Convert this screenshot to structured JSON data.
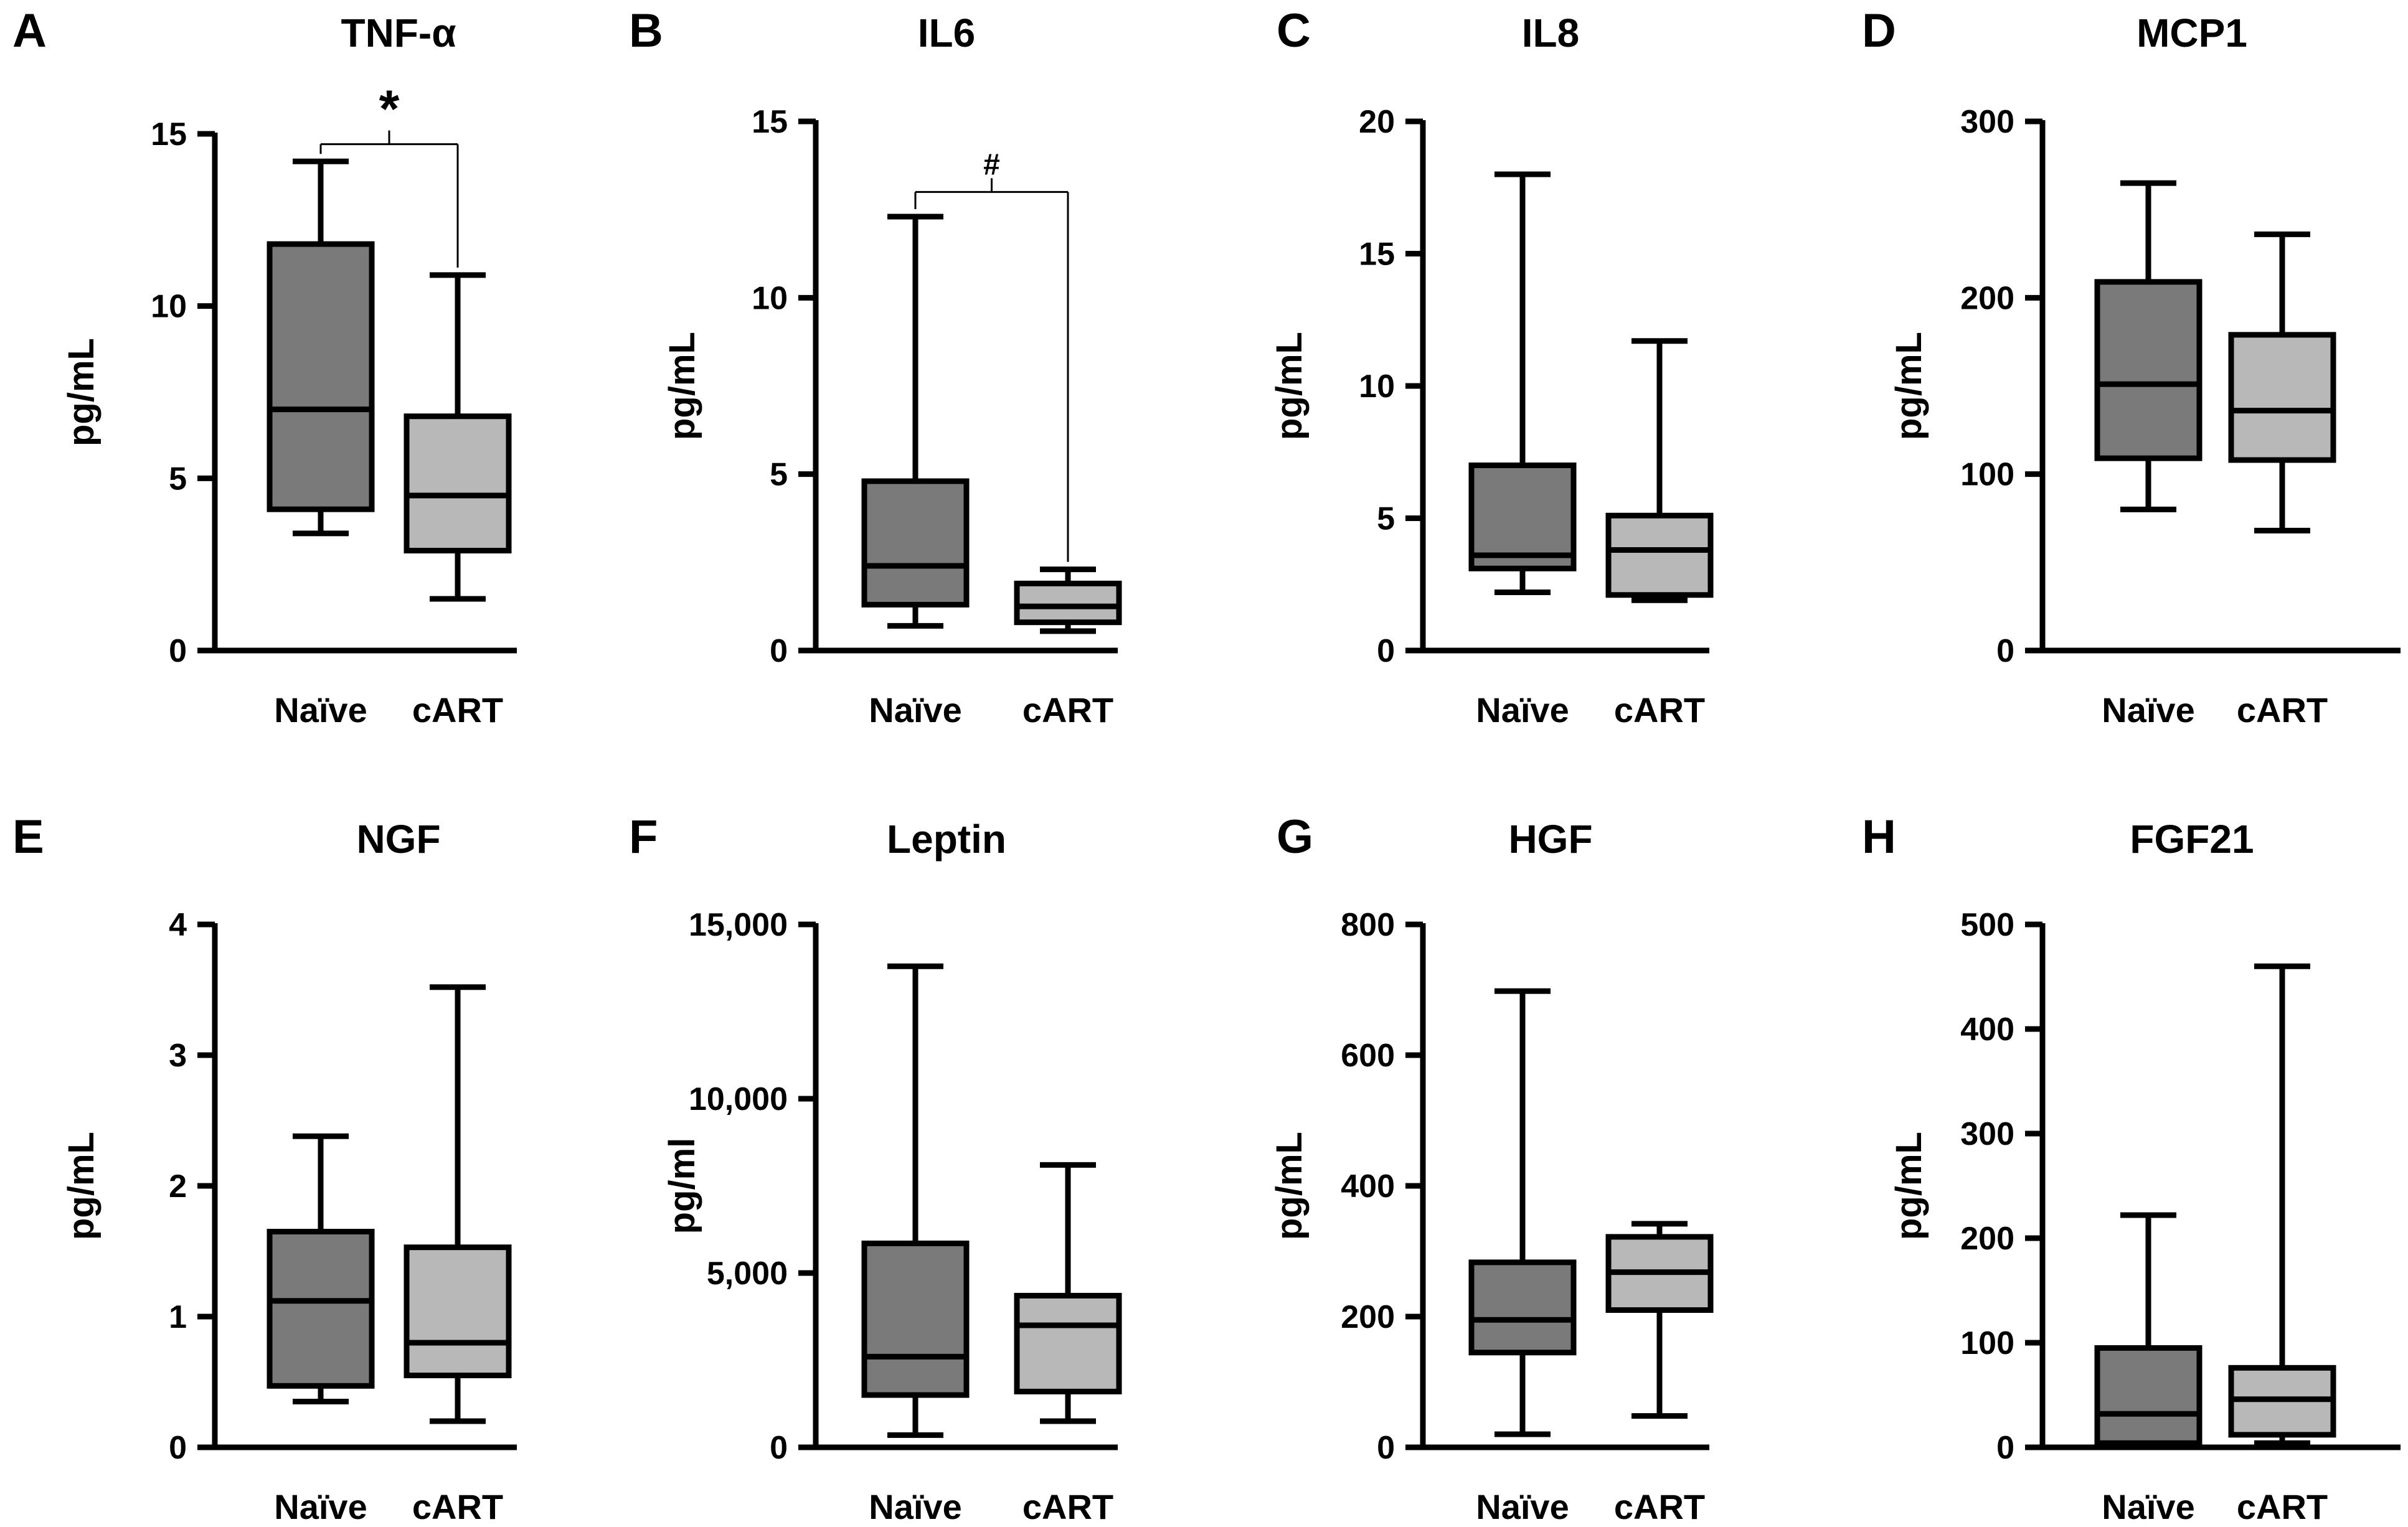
{
  "figure": {
    "colors": {
      "naive": "#7a7a7a",
      "cart": "#b8b8b8",
      "stroke": "#000000"
    }
  },
  "chart_data": [
    {
      "panel": "A",
      "title": "TNF-α",
      "type": "box",
      "ylabel": "pg/mL",
      "ylim": [
        0,
        15
      ],
      "yticks": [
        0,
        5,
        10,
        15
      ],
      "tick_labels": [
        "0",
        "5",
        "10",
        "15"
      ],
      "categories": [
        "Naïve",
        "cART"
      ],
      "boxes": [
        {
          "category": "Naïve",
          "min": 3.4,
          "q1": 4.1,
          "median": 7.0,
          "q3": 11.8,
          "max": 14.2
        },
        {
          "category": "cART",
          "min": 1.5,
          "q1": 2.9,
          "median": 4.5,
          "q3": 6.8,
          "max": 10.9
        }
      ],
      "annotation": {
        "symbol": "*",
        "between": [
          "Naïve",
          "cART"
        ],
        "level": 14.7
      }
    },
    {
      "panel": "B",
      "title": "IL6",
      "type": "box",
      "ylabel": "pg/mL",
      "ylim": [
        0,
        15
      ],
      "yticks": [
        0,
        5,
        10,
        15
      ],
      "tick_labels": [
        "0",
        "5",
        "10",
        "15"
      ],
      "categories": [
        "Naïve",
        "cART"
      ],
      "boxes": [
        {
          "category": "Naïve",
          "min": 0.7,
          "q1": 1.3,
          "median": 2.4,
          "q3": 4.8,
          "max": 12.3
        },
        {
          "category": "cART",
          "min": 0.55,
          "q1": 0.8,
          "median": 1.25,
          "q3": 1.9,
          "max": 2.3
        }
      ],
      "annotation": {
        "symbol": "#",
        "between": [
          "Naïve",
          "cART"
        ],
        "level": 13.0
      }
    },
    {
      "panel": "C",
      "title": "IL8",
      "type": "box",
      "ylabel": "pg/mL",
      "ylim": [
        0,
        20
      ],
      "yticks": [
        0,
        5,
        10,
        15,
        20
      ],
      "tick_labels": [
        "0",
        "5",
        "10",
        "15",
        "20"
      ],
      "categories": [
        "Naïve",
        "cART"
      ],
      "boxes": [
        {
          "category": "Naïve",
          "min": 2.2,
          "q1": 3.1,
          "median": 3.6,
          "q3": 7.0,
          "max": 18.0
        },
        {
          "category": "cART",
          "min": 1.9,
          "q1": 2.1,
          "median": 3.8,
          "q3": 5.1,
          "max": 11.7
        }
      ]
    },
    {
      "panel": "D",
      "title": "MCP1",
      "type": "box",
      "ylabel": "pg/mL",
      "ylim": [
        0,
        300
      ],
      "yticks": [
        0,
        100,
        200,
        300
      ],
      "tick_labels": [
        "0",
        "100",
        "200",
        "300"
      ],
      "categories": [
        "Naïve",
        "cART"
      ],
      "boxes": [
        {
          "category": "Naïve",
          "min": 80,
          "q1": 109,
          "median": 151,
          "q3": 209,
          "max": 265
        },
        {
          "category": "cART",
          "min": 68,
          "q1": 108,
          "median": 136,
          "q3": 179,
          "max": 236
        }
      ]
    },
    {
      "panel": "E",
      "title": "NGF",
      "type": "box",
      "ylabel": "pg/mL",
      "ylim": [
        0,
        4
      ],
      "yticks": [
        0,
        1,
        2,
        3,
        4
      ],
      "tick_labels": [
        "0",
        "1",
        "2",
        "3",
        "4"
      ],
      "categories": [
        "Naïve",
        "cART"
      ],
      "boxes": [
        {
          "category": "Naïve",
          "min": 0.35,
          "q1": 0.47,
          "median": 1.12,
          "q3": 1.65,
          "max": 2.38
        },
        {
          "category": "cART",
          "min": 0.2,
          "q1": 0.55,
          "median": 0.8,
          "q3": 1.53,
          "max": 3.52
        }
      ]
    },
    {
      "panel": "F",
      "title": "Leptin",
      "type": "box",
      "ylabel": "pg/ml",
      "ylim": [
        0,
        15000
      ],
      "yticks": [
        0,
        5000,
        10000,
        15000
      ],
      "tick_labels": [
        "0",
        "5,000",
        "10,000",
        "15,000"
      ],
      "categories": [
        "Naïve",
        "cART"
      ],
      "boxes": [
        {
          "category": "Naïve",
          "min": 350,
          "q1": 1500,
          "median": 2600,
          "q3": 5850,
          "max": 13800
        },
        {
          "category": "cART",
          "min": 750,
          "q1": 1600,
          "median": 3500,
          "q3": 4350,
          "max": 8100
        }
      ]
    },
    {
      "panel": "G",
      "title": "HGF",
      "type": "box",
      "ylabel": "pg/mL",
      "ylim": [
        0,
        800
      ],
      "yticks": [
        0,
        200,
        400,
        600,
        800
      ],
      "tick_labels": [
        "0",
        "200",
        "400",
        "600",
        "800"
      ],
      "categories": [
        "Naïve",
        "cART"
      ],
      "boxes": [
        {
          "category": "Naïve",
          "min": 20,
          "q1": 145,
          "median": 195,
          "q3": 283,
          "max": 698
        },
        {
          "category": "cART",
          "min": 48,
          "q1": 210,
          "median": 268,
          "q3": 322,
          "max": 342
        }
      ]
    },
    {
      "panel": "H",
      "title": "FGF21",
      "type": "box",
      "ylabel": "pg/mL",
      "ylim": [
        0,
        500
      ],
      "yticks": [
        0,
        100,
        200,
        300,
        400,
        500
      ],
      "tick_labels": [
        "0",
        "100",
        "200",
        "300",
        "400",
        "500"
      ],
      "categories": [
        "Naïve",
        "cART"
      ],
      "boxes": [
        {
          "category": "Naïve",
          "min": 2,
          "q1": 4,
          "median": 32,
          "q3": 95,
          "max": 222
        },
        {
          "category": "cART",
          "min": 4,
          "q1": 12,
          "median": 46,
          "q3": 76,
          "max": 460
        }
      ]
    }
  ]
}
